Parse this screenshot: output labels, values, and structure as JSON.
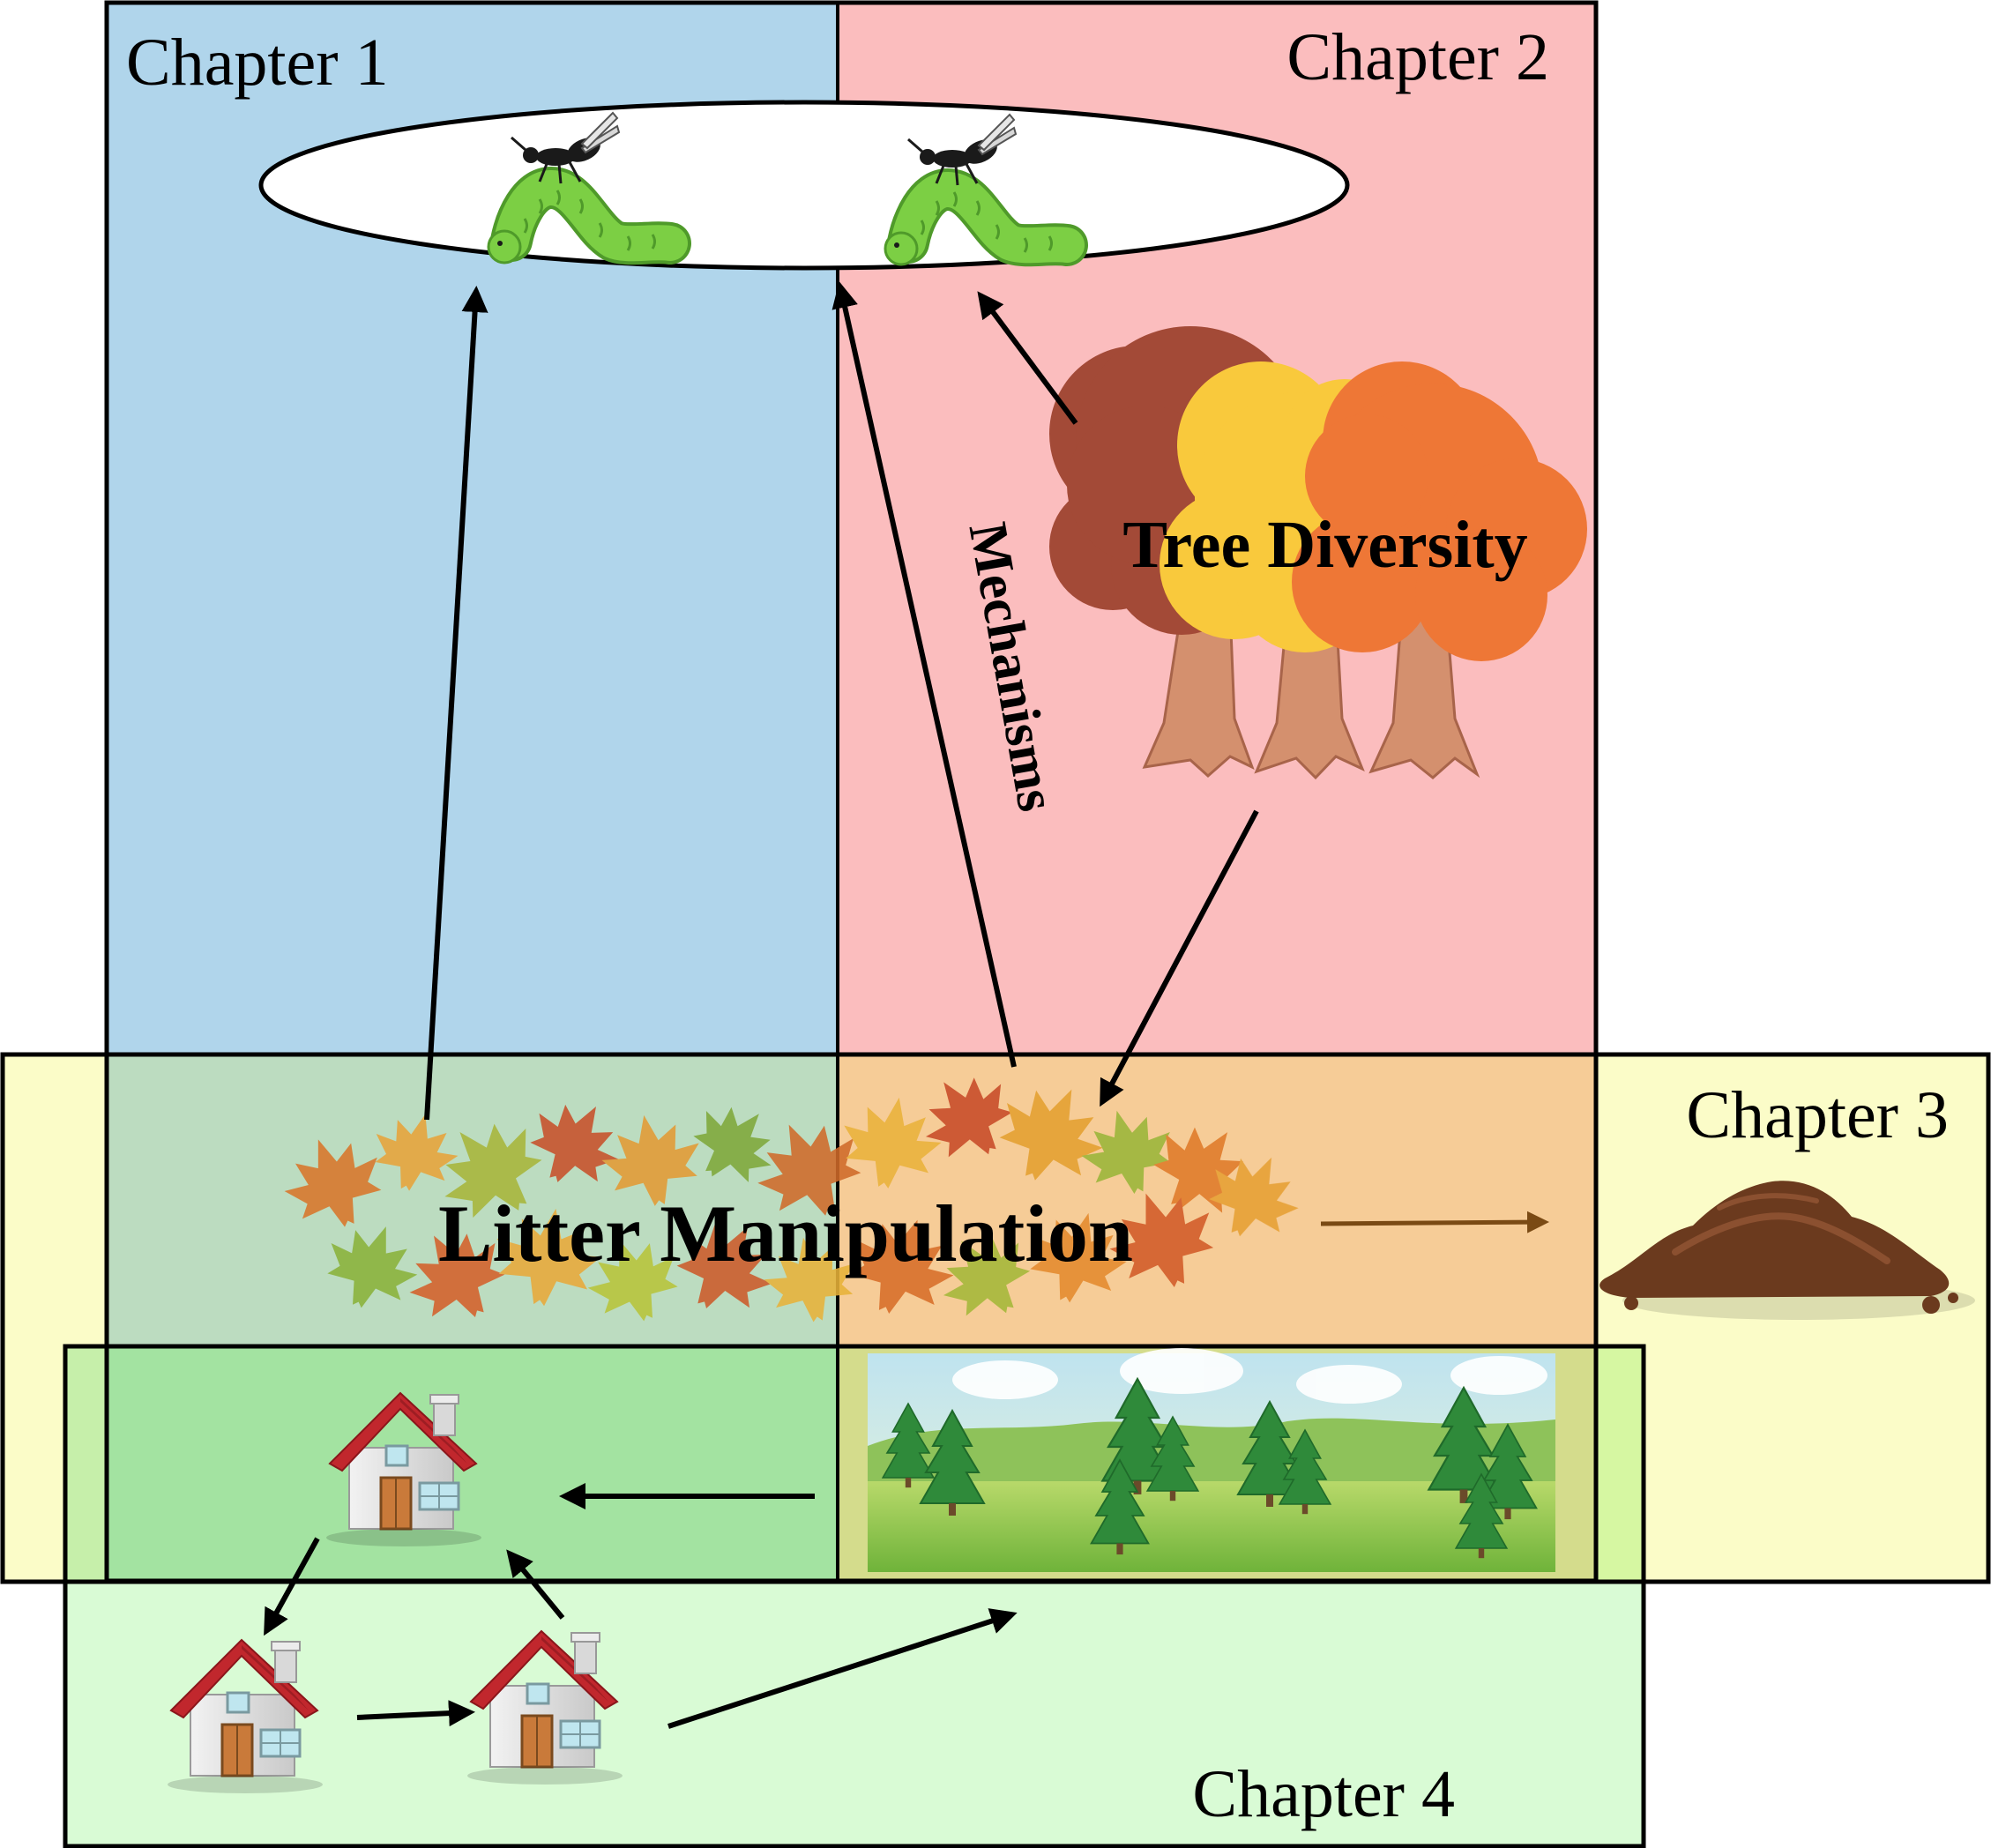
{
  "chapters": {
    "ch1": "Chapter 1",
    "ch2": "Chapter 2",
    "ch3": "Chapter 3",
    "ch4": "Chapter 4"
  },
  "labels": {
    "tree_diversity": "Tree Diversity",
    "litter_manipulation": "Litter Manipulation",
    "mechanisms": "Mechanisms"
  },
  "colors": {
    "chapter1": "#b0d5eb",
    "chapter2": "#fbbdbe",
    "chapter3": "#fbfcc8",
    "chapter4": "#d9fbd5",
    "ch1_ch3_overlap": "#bcdcc0",
    "ch2_ch3_overlap": "#f6cc97",
    "ch1_ch3_ch4_overlap": "#a3e3a1",
    "ch3_ch4_overlap": "#d4dc8c",
    "caterpillar": "#7ccf44",
    "tree_brown": "#a34a37",
    "tree_yellow": "#f9c93c",
    "tree_orange": "#ee7736",
    "trunk": "#d4906e",
    "roof": "#c1272d",
    "soil": "#6b3a1e"
  },
  "icons": [
    "wasp-icon",
    "caterpillar-icon",
    "tree-icon",
    "leaf-litter-icon",
    "soil-pile-icon",
    "house-icon",
    "forest-landscape-icon"
  ]
}
